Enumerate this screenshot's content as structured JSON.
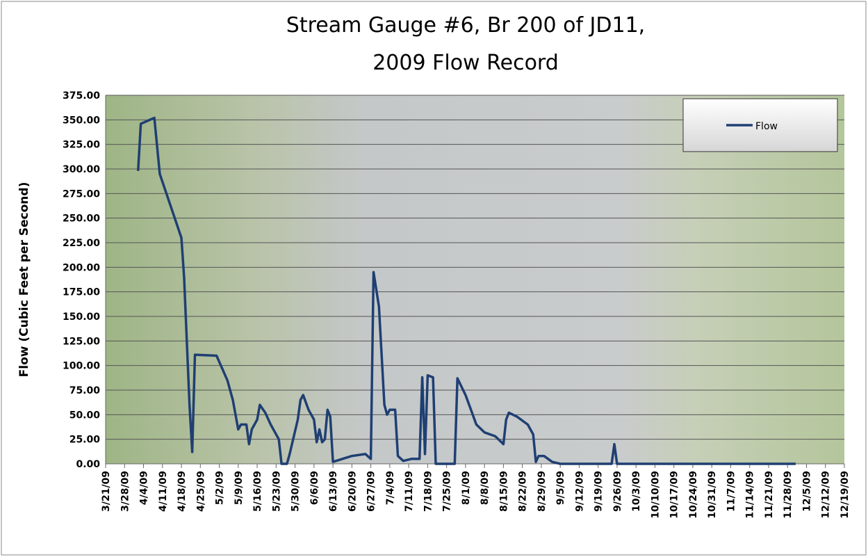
{
  "chart_data": {
    "type": "line",
    "title": [
      "Stream Gauge #6, Br 200 of JD11,",
      "2009 Flow Record"
    ],
    "y_label": "Flow (Cubic Feet per Second)",
    "legend_position": "upper right",
    "grid": true,
    "xlim": [
      "3/21/09",
      "12/19/09"
    ],
    "xticks": [
      "3/21/09",
      "3/28/09",
      "4/4/09",
      "4/11/09",
      "4/18/09",
      "4/25/09",
      "5/2/09",
      "5/9/09",
      "5/16/09",
      "5/23/09",
      "5/30/09",
      "6/6/09",
      "6/13/09",
      "6/20/09",
      "6/27/09",
      "7/4/09",
      "7/11/09",
      "7/18/09",
      "7/25/09",
      "8/1/09",
      "8/8/09",
      "8/15/09",
      "8/22/09",
      "8/29/09",
      "9/5/09",
      "9/12/09",
      "9/19/09",
      "9/26/09",
      "10/3/09",
      "10/10/09",
      "10/17/09",
      "10/24/09",
      "10/31/09",
      "11/7/09",
      "11/14/09",
      "11/21/09",
      "11/28/09",
      "12/5/09",
      "12/12/09",
      "12/19/09"
    ],
    "ylim": [
      0,
      375
    ],
    "yticks": [
      {
        "value": 0,
        "label": "0.00"
      },
      {
        "value": 25,
        "label": "25.00"
      },
      {
        "value": 50,
        "label": "50.00"
      },
      {
        "value": 75,
        "label": "75.00"
      },
      {
        "value": 100,
        "label": "100.00"
      },
      {
        "value": 125,
        "label": "125.00"
      },
      {
        "value": 150,
        "label": "150.00"
      },
      {
        "value": 175,
        "label": "175.00"
      },
      {
        "value": 200,
        "label": "200.00"
      },
      {
        "value": 225,
        "label": "225.00"
      },
      {
        "value": 250,
        "label": "250.00"
      },
      {
        "value": 275,
        "label": "275.00"
      },
      {
        "value": 300,
        "label": "300.00"
      },
      {
        "value": 325,
        "label": "325.00"
      },
      {
        "value": 350,
        "label": "350.00"
      },
      {
        "value": 375,
        "label": "375.00"
      }
    ],
    "x": [
      "4/2/09",
      "4/3/09",
      "4/8/09",
      "4/10/09",
      "4/18/09",
      "4/19/09",
      "4/21/09",
      "4/22/09",
      "4/23/09",
      "5/1/09",
      "5/5/09",
      "5/7/09",
      "5/9/09",
      "5/10/09",
      "5/12/09",
      "5/13/09",
      "5/14/09",
      "5/16/09",
      "5/17/09",
      "5/19/09",
      "5/21/09",
      "5/24/09",
      "5/25/09",
      "5/27/09",
      "5/28/09",
      "5/31/09",
      "6/1/09",
      "6/2/09",
      "6/4/09",
      "6/6/09",
      "6/7/09",
      "6/8/09",
      "6/9/09",
      "6/10/09",
      "6/11/09",
      "6/12/09",
      "6/13/09",
      "6/20/09",
      "6/25/09",
      "6/27/09",
      "6/28/09",
      "6/30/09",
      "7/2/09",
      "7/3/09",
      "7/4/09",
      "7/6/09",
      "7/7/09",
      "7/9/09",
      "7/12/09",
      "7/15/09",
      "7/16/09",
      "7/17/09",
      "7/18/09",
      "7/20/09",
      "7/21/09",
      "7/28/09",
      "7/29/09",
      "8/1/09",
      "8/3/09",
      "8/5/09",
      "8/8/09",
      "8/12/09",
      "8/15/09",
      "8/16/09",
      "8/17/09",
      "8/20/09",
      "8/24/09",
      "8/26/09",
      "8/27/09",
      "8/28/09",
      "8/30/09",
      "9/2/09",
      "9/5/09",
      "9/24/09",
      "9/25/09",
      "9/26/09",
      "12/1/09"
    ],
    "series": [
      {
        "name": "Flow",
        "color": "#1f3f73",
        "values": [
          298,
          346,
          352,
          295,
          230,
          190,
          60,
          12,
          111,
          110,
          85,
          65,
          35,
          40,
          40,
          20,
          35,
          45,
          60,
          52,
          40,
          25,
          0,
          0,
          10,
          45,
          65,
          70,
          55,
          45,
          22,
          35,
          22,
          25,
          55,
          48,
          2,
          8,
          10,
          5,
          195,
          160,
          60,
          50,
          55,
          55,
          8,
          3,
          5,
          5,
          88,
          10,
          90,
          88,
          0,
          0,
          87,
          70,
          55,
          40,
          32,
          28,
          20,
          45,
          52,
          48,
          40,
          30,
          2,
          8,
          8,
          2,
          0,
          0,
          20,
          0,
          0
        ]
      }
    ]
  }
}
